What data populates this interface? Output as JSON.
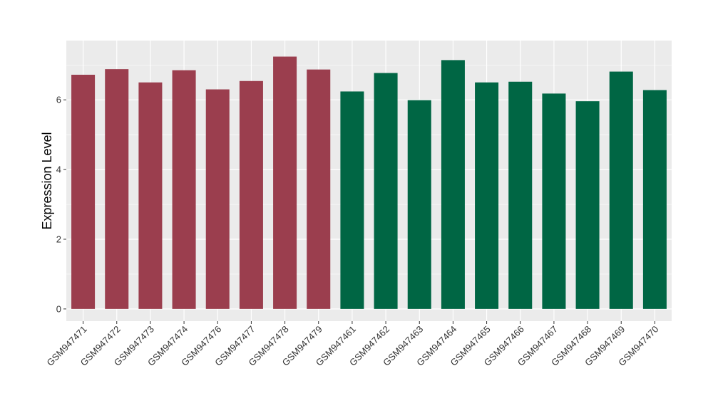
{
  "chart_data": {
    "type": "bar",
    "title": "",
    "xlabel": "",
    "ylabel": "Expression Level",
    "ylim": [
      -0.35,
      7.7
    ],
    "yticks": [
      0,
      2,
      4,
      6
    ],
    "grid": true,
    "categories": [
      "GSM947471",
      "GSM947472",
      "GSM947473",
      "GSM947474",
      "GSM947476",
      "GSM947477",
      "GSM947478",
      "GSM947479",
      "GSM947461",
      "GSM947462",
      "GSM947463",
      "GSM947464",
      "GSM947465",
      "GSM947466",
      "GSM947467",
      "GSM947468",
      "GSM947469",
      "GSM947470"
    ],
    "values": [
      6.72,
      6.88,
      6.5,
      6.85,
      6.3,
      6.54,
      7.24,
      6.87,
      6.24,
      6.77,
      5.99,
      7.14,
      6.5,
      6.52,
      6.18,
      5.96,
      6.81,
      6.28
    ],
    "groups": [
      "red",
      "red",
      "red",
      "red",
      "red",
      "red",
      "red",
      "red",
      "green",
      "green",
      "green",
      "green",
      "green",
      "green",
      "green",
      "green",
      "green",
      "green"
    ],
    "colors": {
      "red": "#9b3e4e",
      "green": "#006644",
      "panel": "#ebebeb",
      "grid": "#ffffff"
    }
  }
}
